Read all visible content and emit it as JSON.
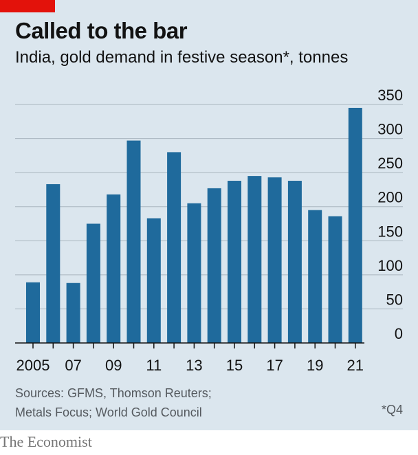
{
  "header": {
    "title": "Called to the bar",
    "subtitle": "India, gold demand in festive season*, tonnes"
  },
  "footer": {
    "source_line1": "Sources: GFMS, Thomson Reuters;",
    "source_line2": "Metals Focus; World Gold Council",
    "footnote": "*Q4",
    "brand": "The Economist"
  },
  "colors": {
    "panel": "#dbe6ee",
    "bar": "#1f6a9c",
    "gridline": "#a9b5bf",
    "axis": "#121212",
    "accent": "#e3120b"
  },
  "chart_data": {
    "type": "bar",
    "categories": [
      "2005",
      "2006",
      "2007",
      "2008",
      "2009",
      "2010",
      "2011",
      "2012",
      "2013",
      "2014",
      "2015",
      "2016",
      "2017",
      "2018",
      "2019",
      "2020",
      "2021"
    ],
    "x_tick_labels": [
      "2005",
      "",
      "07",
      "",
      "09",
      "",
      "11",
      "",
      "13",
      "",
      "15",
      "",
      "17",
      "",
      "19",
      "",
      "21"
    ],
    "values": [
      89,
      233,
      88,
      175,
      218,
      297,
      183,
      280,
      205,
      227,
      238,
      245,
      243,
      238,
      195,
      186,
      345
    ],
    "ylim": [
      0,
      350
    ],
    "yticks": [
      0,
      50,
      100,
      150,
      200,
      250,
      300,
      350
    ],
    "y_axis_side": "right",
    "grid": true
  }
}
